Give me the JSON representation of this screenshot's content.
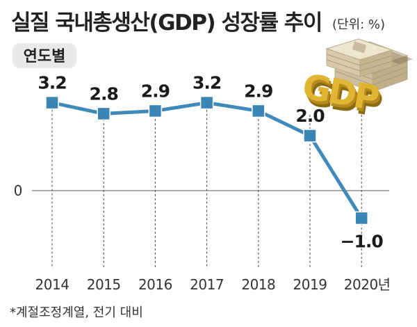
{
  "title": "실질 국내총생산(GDP) 성장률 추이",
  "unit": "(단위: %)",
  "badge": "연도별",
  "footnote": "*계절조정계열, 전기 대비",
  "illustration": {
    "text": "GDP",
    "icon": "money-stack-icon"
  },
  "colors": {
    "line": "#3f8ab8",
    "marker": "#3a85b5",
    "gdp_gold": "#d6a829",
    "badge_bg": "#e9e9e9"
  },
  "chart_data": {
    "type": "line",
    "title": "실질 국내총생산(GDP) 성장률 추이",
    "unit": "%",
    "categories": [
      "2014",
      "2015",
      "2016",
      "2017",
      "2018",
      "2019",
      "2020년"
    ],
    "values": [
      3.2,
      2.8,
      2.9,
      3.2,
      2.9,
      2.0,
      -1.0
    ],
    "value_labels": [
      "3.2",
      "2.8",
      "2.9",
      "3.2",
      "2.9",
      "2.0",
      "−1.0"
    ],
    "y_ticks": [
      "0"
    ],
    "ylim": [
      -1.4,
      3.8
    ],
    "grid": "vertical dashed lines at each year",
    "legend": "none"
  }
}
